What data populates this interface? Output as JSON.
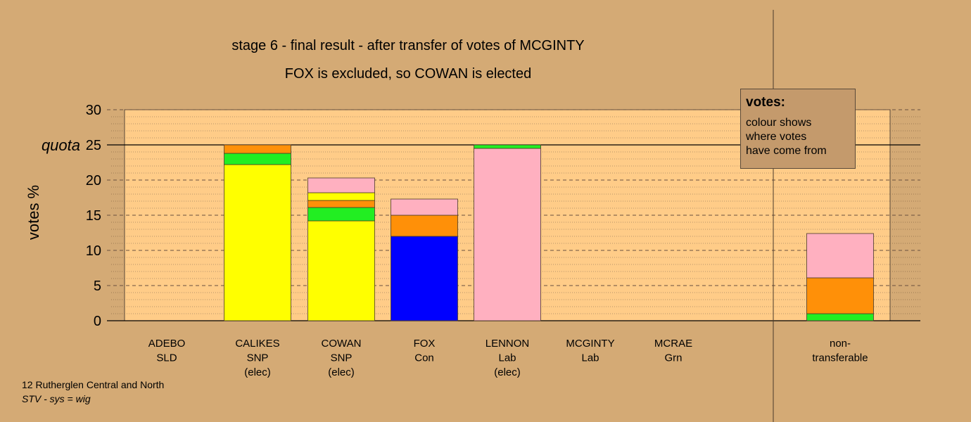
{
  "chart_data": {
    "type": "bar",
    "title": "stage 6 - final result - after transfer of votes of MCGINTY",
    "subtitle": "FOX is excluded, so COWAN is elected",
    "ylabel": "votes %",
    "ylim": [
      0,
      30
    ],
    "yticks": [
      "0",
      "5",
      "10",
      "15",
      "20",
      "25",
      "30"
    ],
    "quota": {
      "label": "quota",
      "value": 25
    },
    "colors": {
      "SNP": "#ffff00",
      "Con": "#0000ff",
      "Lab": "#ffb0c0",
      "Grn": "#22ee22",
      "SLD": "#ff9008",
      "nt": "#ffcc88"
    },
    "categories": [
      {
        "name": "ADEBO",
        "party": "SLD",
        "note": ""
      },
      {
        "name": "CALIKES",
        "party": "SNP",
        "note": "(elec)"
      },
      {
        "name": "COWAN",
        "party": "SNP",
        "note": "(elec)"
      },
      {
        "name": "FOX",
        "party": "Con",
        "note": ""
      },
      {
        "name": "LENNON",
        "party": "Lab",
        "note": "(elec)"
      },
      {
        "name": "MCGINTY",
        "party": "Lab",
        "note": ""
      },
      {
        "name": "MCRAE",
        "party": "Grn",
        "note": ""
      },
      {
        "name": "non-",
        "party": "transferable",
        "note": ""
      }
    ],
    "stacks": [
      [],
      [
        {
          "from": "SNP",
          "value": 22.2
        },
        {
          "from": "Grn",
          "value": 1.6
        },
        {
          "from": "SLD",
          "value": 1.2
        }
      ],
      [
        {
          "from": "SNP",
          "value": 14.2
        },
        {
          "from": "Grn",
          "value": 1.9
        },
        {
          "from": "SLD",
          "value": 1.0
        },
        {
          "from": "SNP",
          "value": 1.1
        },
        {
          "from": "Lab",
          "value": 2.1
        }
      ],
      [
        {
          "from": "Con",
          "value": 12.0
        },
        {
          "from": "SLD",
          "value": 3.0
        },
        {
          "from": "Lab",
          "value": 2.3
        }
      ],
      [
        {
          "from": "Lab",
          "value": 24.5
        },
        {
          "from": "Grn",
          "value": 0.5
        }
      ],
      [],
      [],
      [
        {
          "from": "Grn",
          "value": 1.0
        },
        {
          "from": "SLD",
          "value": 5.1
        },
        {
          "from": "Lab",
          "value": 6.3
        }
      ]
    ]
  },
  "legend": {
    "title": "votes:",
    "lines": [
      "colour shows",
      "where votes",
      "have come from"
    ]
  },
  "footer": {
    "line1": "12 Rutherglen Central and North",
    "line2": "STV - sys = wig"
  }
}
